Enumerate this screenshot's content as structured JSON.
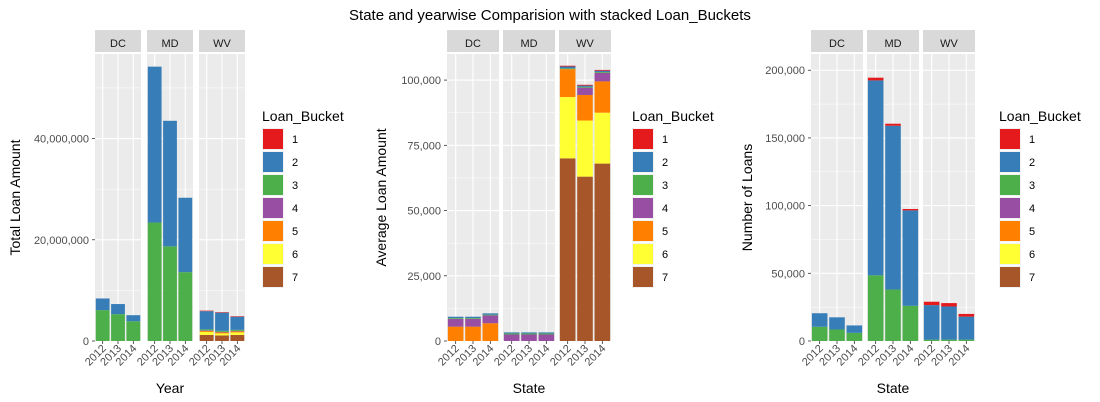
{
  "title": "State and yearwise Comparision with stacked Loan_Buckets",
  "legend": {
    "title": "Loan_Bucket",
    "items": [
      "1",
      "2",
      "3",
      "4",
      "5",
      "6",
      "7"
    ]
  },
  "colors": {
    "1": "#E41A1C",
    "2": "#377EB8",
    "3": "#4DAF4A",
    "4": "#984EA3",
    "5": "#FF7F00",
    "6": "#FFFF33",
    "7": "#A65628",
    "panel_bg": "#EBEBEB",
    "grid": "#FFFFFF",
    "strip_bg": "#D9D9D9"
  },
  "chart_data": [
    {
      "type": "bar",
      "stacked": true,
      "facets": [
        "DC",
        "MD",
        "WV"
      ],
      "categories": [
        "2012",
        "2013",
        "2014"
      ],
      "xlabel": "Year",
      "ylabel": "Total Loan Amount",
      "ylim": [
        0,
        56700000
      ],
      "yticks": [
        0,
        20000000,
        40000000
      ],
      "ytick_labels": [
        "0",
        "20,000,000",
        "40,000,000"
      ],
      "stack_order": [
        "1",
        "2",
        "3",
        "4",
        "5",
        "6",
        "7"
      ],
      "values": {
        "DC": [
          {
            "1": 0,
            "2": 2300000,
            "3": 6100000,
            "4": 0,
            "5": 0,
            "6": 0,
            "7": 0
          },
          {
            "1": 0,
            "2": 2000000,
            "3": 5300000,
            "4": 0,
            "5": 0,
            "6": 0,
            "7": 0
          },
          {
            "1": 0,
            "2": 1200000,
            "3": 3900000,
            "4": 0,
            "5": 0,
            "6": 0,
            "7": 0
          }
        ],
        "MD": [
          {
            "1": 0,
            "2": 30800000,
            "3": 23400000,
            "4": 0,
            "5": 0,
            "6": 0,
            "7": 0
          },
          {
            "1": 0,
            "2": 24800000,
            "3": 18700000,
            "4": 0,
            "5": 0,
            "6": 0,
            "7": 0
          },
          {
            "1": 0,
            "2": 14700000,
            "3": 13600000,
            "4": 0,
            "5": 0,
            "6": 0,
            "7": 0
          }
        ],
        "WV": [
          {
            "1": 100000,
            "2": 3600000,
            "3": 200000,
            "4": 100000,
            "5": 200000,
            "6": 600000,
            "7": 1200000
          },
          {
            "1": 100000,
            "2": 3600000,
            "3": 200000,
            "4": 100000,
            "5": 200000,
            "6": 400000,
            "7": 1100000
          },
          {
            "1": 100000,
            "2": 2600000,
            "3": 200000,
            "4": 100000,
            "5": 200000,
            "6": 500000,
            "7": 1200000
          }
        ]
      }
    },
    {
      "type": "bar",
      "stacked": true,
      "facets": [
        "DC",
        "MD",
        "WV"
      ],
      "categories": [
        "2012",
        "2013",
        "2014"
      ],
      "xlabel": "State",
      "ylabel": "Average Loan Amount",
      "ylim": [
        0,
        110000
      ],
      "yticks": [
        0,
        25000,
        50000,
        75000,
        100000
      ],
      "ytick_labels": [
        "0",
        "25,000",
        "50,000",
        "75,000",
        "100,000"
      ],
      "stack_order": [
        "1",
        "2",
        "3",
        "4",
        "5",
        "6",
        "7"
      ],
      "values": {
        "DC": [
          {
            "1": 0,
            "2": 500,
            "3": 300,
            "4": 3000,
            "5": 5500,
            "6": 0,
            "7": 0
          },
          {
            "1": 0,
            "2": 500,
            "3": 300,
            "4": 3000,
            "5": 5500,
            "6": 0,
            "7": 0
          },
          {
            "1": 0,
            "2": 500,
            "3": 300,
            "4": 3000,
            "5": 6800,
            "6": 0,
            "7": 0
          }
        ],
        "MD": [
          {
            "1": 0,
            "2": 400,
            "3": 400,
            "4": 2500,
            "5": 0,
            "6": 0,
            "7": 0
          },
          {
            "1": 0,
            "2": 400,
            "3": 400,
            "4": 2500,
            "5": 0,
            "6": 0,
            "7": 0
          },
          {
            "1": 0,
            "2": 400,
            "3": 400,
            "4": 2500,
            "5": 0,
            "6": 0,
            "7": 0
          }
        ],
        "WV": [
          {
            "1": 300,
            "2": 700,
            "3": 300,
            "4": 0,
            "5": 10700,
            "6": 23500,
            "7": 70000
          },
          {
            "1": 300,
            "2": 500,
            "3": 300,
            "4": 2800,
            "5": 9800,
            "6": 21500,
            "7": 63000
          },
          {
            "1": 300,
            "2": 500,
            "3": 300,
            "4": 3300,
            "5": 12000,
            "6": 19500,
            "7": 68000
          }
        ]
      }
    },
    {
      "type": "bar",
      "stacked": true,
      "facets": [
        "DC",
        "MD",
        "WV"
      ],
      "categories": [
        "2012",
        "2013",
        "2014"
      ],
      "xlabel": "State",
      "ylabel": "Number of Loans",
      "ylim": [
        0,
        212000
      ],
      "yticks": [
        0,
        50000,
        100000,
        150000,
        200000
      ],
      "ytick_labels": [
        "0",
        "50,000",
        "100,000",
        "150,000",
        "200,000"
      ],
      "stack_order": [
        "1",
        "2",
        "3",
        "4",
        "5",
        "6",
        "7"
      ],
      "values": {
        "DC": [
          {
            "1": 0,
            "2": 10000,
            "3": 10500,
            "4": 0,
            "5": 0,
            "6": 0,
            "7": 0
          },
          {
            "1": 0,
            "2": 9000,
            "3": 8500,
            "4": 0,
            "5": 0,
            "6": 0,
            "7": 0
          },
          {
            "1": 0,
            "2": 5500,
            "3": 6000,
            "4": 0,
            "5": 0,
            "6": 0,
            "7": 0
          }
        ],
        "MD": [
          {
            "1": 2000,
            "2": 144000,
            "3": 48500,
            "4": 0,
            "5": 0,
            "6": 0,
            "7": 0
          },
          {
            "1": 1500,
            "2": 121000,
            "3": 38000,
            "4": 0,
            "5": 0,
            "6": 0,
            "7": 0
          },
          {
            "1": 1000,
            "2": 70500,
            "3": 26000,
            "4": 0,
            "5": 0,
            "6": 0,
            "7": 0
          }
        ],
        "WV": [
          {
            "1": 2500,
            "2": 25500,
            "3": 1000,
            "4": 0,
            "5": 0,
            "6": 0,
            "7": 0
          },
          {
            "1": 2500,
            "2": 24500,
            "3": 1000,
            "4": 0,
            "5": 0,
            "6": 0,
            "7": 0
          },
          {
            "1": 2000,
            "2": 17000,
            "3": 1000,
            "4": 0,
            "5": 0,
            "6": 0,
            "7": 0
          }
        ]
      }
    }
  ]
}
